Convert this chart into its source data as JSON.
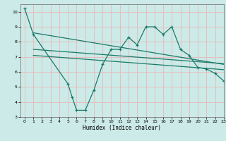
{
  "title": "",
  "xlabel": "Humidex (Indice chaleur)",
  "bg_color": "#cceae7",
  "grid_color": "#aad4d0",
  "line_color": "#1a7a6a",
  "xlim": [
    -0.5,
    23
  ],
  "ylim": [
    3,
    10.5
  ],
  "xticks": [
    0,
    1,
    2,
    3,
    4,
    5,
    6,
    7,
    8,
    9,
    10,
    11,
    12,
    13,
    14,
    15,
    16,
    17,
    18,
    19,
    20,
    21,
    22,
    23
  ],
  "yticks": [
    3,
    4,
    5,
    6,
    7,
    8,
    9,
    10
  ],
  "main_x": [
    0,
    1,
    5,
    5.5,
    6,
    7,
    8,
    9,
    10,
    11,
    12,
    13,
    14,
    15,
    16,
    17,
    18,
    19,
    20,
    21,
    22,
    23
  ],
  "main_y": [
    10.2,
    8.5,
    5.2,
    4.3,
    3.45,
    3.45,
    4.8,
    6.5,
    7.5,
    7.5,
    8.3,
    7.8,
    9.0,
    9.0,
    8.5,
    9.0,
    7.5,
    7.1,
    6.3,
    6.2,
    5.9,
    5.4
  ],
  "line2_x": [
    1,
    23
  ],
  "line2_y": [
    8.6,
    6.5
  ],
  "line3_x": [
    1,
    23
  ],
  "line3_y": [
    7.5,
    6.55
  ],
  "line4_x": [
    1,
    23
  ],
  "line4_y": [
    7.1,
    6.15
  ]
}
